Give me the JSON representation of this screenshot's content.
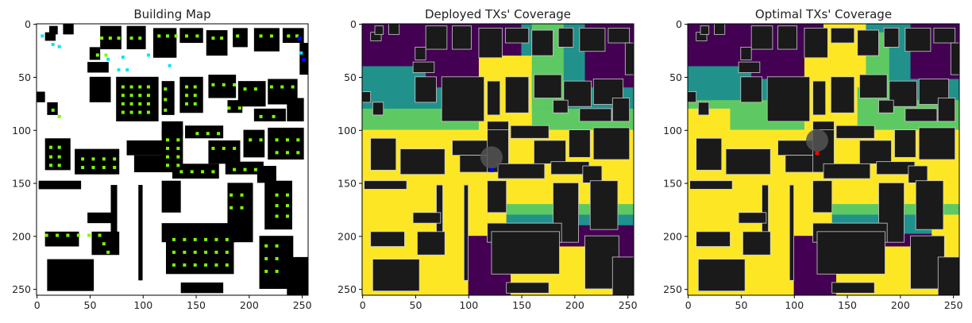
{
  "chart_data": [
    {
      "type": "heatmap",
      "title": "Building Map",
      "xlim": [
        0,
        255
      ],
      "ylim": [
        255,
        0
      ],
      "xticks": [
        0,
        50,
        100,
        150,
        200,
        250
      ],
      "yticks": [
        0,
        50,
        100,
        150,
        200,
        250
      ],
      "colors": {
        "background": "#ffffff",
        "building": "#000000",
        "candidate": "#7cfc00",
        "deployed": "#00e5ff",
        "selected": "#0000ff"
      }
    },
    {
      "type": "heatmap",
      "title": "Deployed TXs' Coverage",
      "xlim": [
        0,
        255
      ],
      "ylim": [
        255,
        0
      ],
      "xticks": [
        0,
        50,
        100,
        150,
        200,
        250
      ],
      "yticks": [
        0,
        50,
        100,
        150,
        200,
        250
      ],
      "colors": {
        "none": "#440154",
        "low": "#21918c",
        "mid": "#5ec962",
        "high": "#fde725",
        "building": "#1a1a1a"
      },
      "marker": {
        "x": 122,
        "y": 138,
        "color": "#0000ff"
      }
    },
    {
      "type": "heatmap",
      "title": "Optimal TXs' Coverage",
      "xlim": [
        0,
        255
      ],
      "ylim": [
        255,
        0
      ],
      "xticks": [
        0,
        50,
        100,
        150,
        200,
        250
      ],
      "yticks": [
        0,
        50,
        100,
        150,
        200,
        250
      ],
      "colors": {
        "none": "#440154",
        "low": "#21918c",
        "mid": "#5ec962",
        "high": "#fde725",
        "building": "#1a1a1a"
      },
      "marker": {
        "x": 122,
        "y": 122,
        "color": "#ff0000"
      }
    }
  ]
}
